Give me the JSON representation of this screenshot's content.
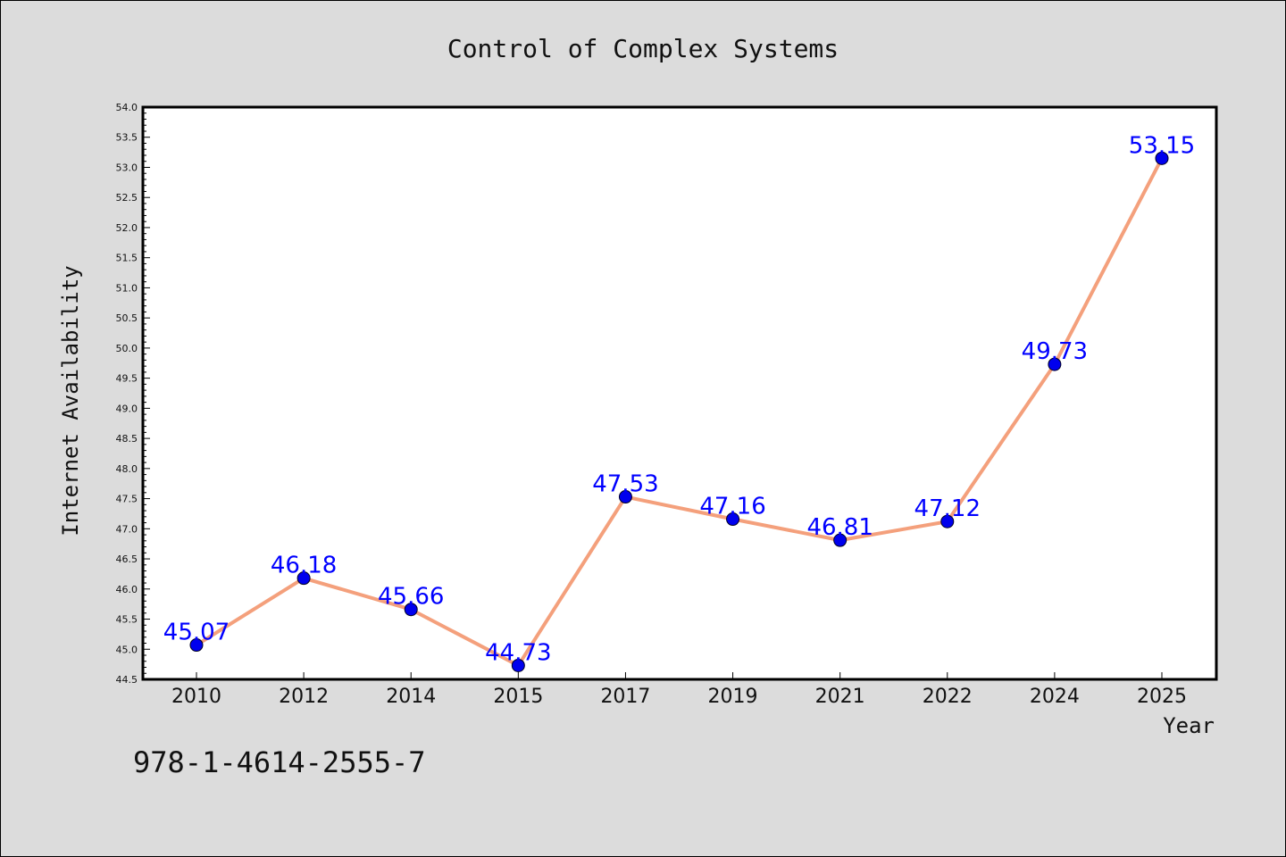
{
  "chart_data": {
    "type": "line",
    "title": "Control of Complex Systems",
    "xlabel": "Year",
    "ylabel": "Internet Availability",
    "categories": [
      "2010",
      "2012",
      "2014",
      "2015",
      "2017",
      "2019",
      "2021",
      "2022",
      "2024",
      "2025"
    ],
    "series": [
      {
        "values": [
          45.07,
          46.18,
          45.66,
          44.73,
          47.53,
          47.16,
          46.81,
          47.12,
          49.73,
          53.15
        ],
        "labels": [
          "45.07",
          "46.18",
          "45.66",
          "44.73",
          "47.53",
          "47.16",
          "46.81",
          "47.12",
          "49.73",
          "53.15"
        ]
      }
    ],
    "ylim": [
      44.5,
      54.0
    ],
    "yticks": [
      "44.5",
      "45.0",
      "45.5",
      "46.0",
      "46.5",
      "47.0",
      "47.5",
      "48.0",
      "48.5",
      "49.0",
      "49.5",
      "50.0",
      "50.5",
      "51.0",
      "51.5",
      "52.0",
      "52.5",
      "53.0",
      "53.5",
      "54.0"
    ],
    "grid": false,
    "line_color": "#f4a07c",
    "marker_color": "#0000ee",
    "label_color": "#0000ff",
    "background": "#dcdcdc",
    "plot_background": "#ffffff"
  },
  "annotation": "978-1-4614-2555-7"
}
